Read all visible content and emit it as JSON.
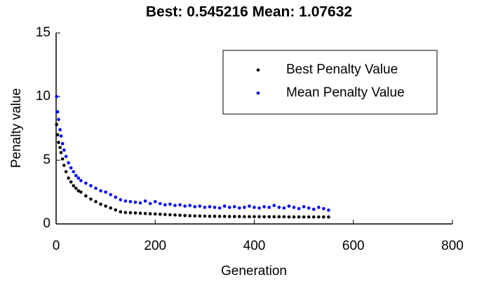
{
  "chart_data": {
    "type": "scatter",
    "title": "Best: 0.545216 Mean: 1.07632",
    "x_label": "Generation",
    "y_label": "Penalty value",
    "xlim": [
      0,
      800
    ],
    "xticks": [
      0,
      200,
      400,
      600,
      800
    ],
    "ylim": [
      0,
      15
    ],
    "yticks": [
      0,
      5,
      10,
      15
    ],
    "legend": "top-right",
    "x": [
      1,
      3,
      5,
      8,
      10,
      13,
      16,
      20,
      25,
      30,
      35,
      40,
      45,
      50,
      60,
      70,
      80,
      90,
      100,
      110,
      120,
      130,
      140,
      150,
      160,
      170,
      180,
      190,
      200,
      210,
      220,
      230,
      240,
      250,
      260,
      270,
      280,
      290,
      300,
      310,
      320,
      330,
      340,
      350,
      360,
      370,
      380,
      390,
      400,
      410,
      420,
      430,
      440,
      450,
      460,
      470,
      480,
      490,
      500,
      510,
      520,
      530,
      540,
      550
    ],
    "series": [
      {
        "name": "Best Penalty Value",
        "color": "#000000",
        "values": [
          7.8,
          7.0,
          6.4,
          6.0,
          5.6,
          5.1,
          4.6,
          4.1,
          3.6,
          3.3,
          3.0,
          2.8,
          2.6,
          2.5,
          2.2,
          1.95,
          1.75,
          1.55,
          1.4,
          1.25,
          1.1,
          0.95,
          0.9,
          0.88,
          0.86,
          0.84,
          0.82,
          0.8,
          0.78,
          0.76,
          0.74,
          0.72,
          0.7,
          0.68,
          0.66,
          0.64,
          0.63,
          0.62,
          0.61,
          0.6,
          0.6,
          0.59,
          0.59,
          0.58,
          0.58,
          0.58,
          0.57,
          0.57,
          0.57,
          0.57,
          0.56,
          0.56,
          0.56,
          0.56,
          0.56,
          0.55,
          0.55,
          0.55,
          0.55,
          0.55,
          0.55,
          0.55,
          0.55,
          0.545
        ]
      },
      {
        "name": "Mean Penalty Value",
        "color": "#0000ff",
        "values": [
          10,
          8.8,
          8.2,
          7.4,
          6.9,
          6.3,
          5.8,
          5.3,
          4.8,
          4.4,
          4.1,
          3.8,
          3.6,
          3.4,
          3.2,
          3.0,
          2.8,
          2.6,
          2.5,
          2.3,
          2.1,
          1.9,
          1.8,
          1.75,
          1.7,
          1.65,
          1.8,
          1.6,
          1.75,
          1.6,
          1.5,
          1.55,
          1.45,
          1.5,
          1.4,
          1.45,
          1.35,
          1.4,
          1.3,
          1.35,
          1.3,
          1.25,
          1.4,
          1.3,
          1.35,
          1.25,
          1.3,
          1.4,
          1.3,
          1.25,
          1.35,
          1.3,
          1.45,
          1.3,
          1.25,
          1.4,
          1.3,
          1.2,
          1.35,
          1.25,
          1.15,
          1.3,
          1.2,
          1.08
        ]
      }
    ]
  }
}
